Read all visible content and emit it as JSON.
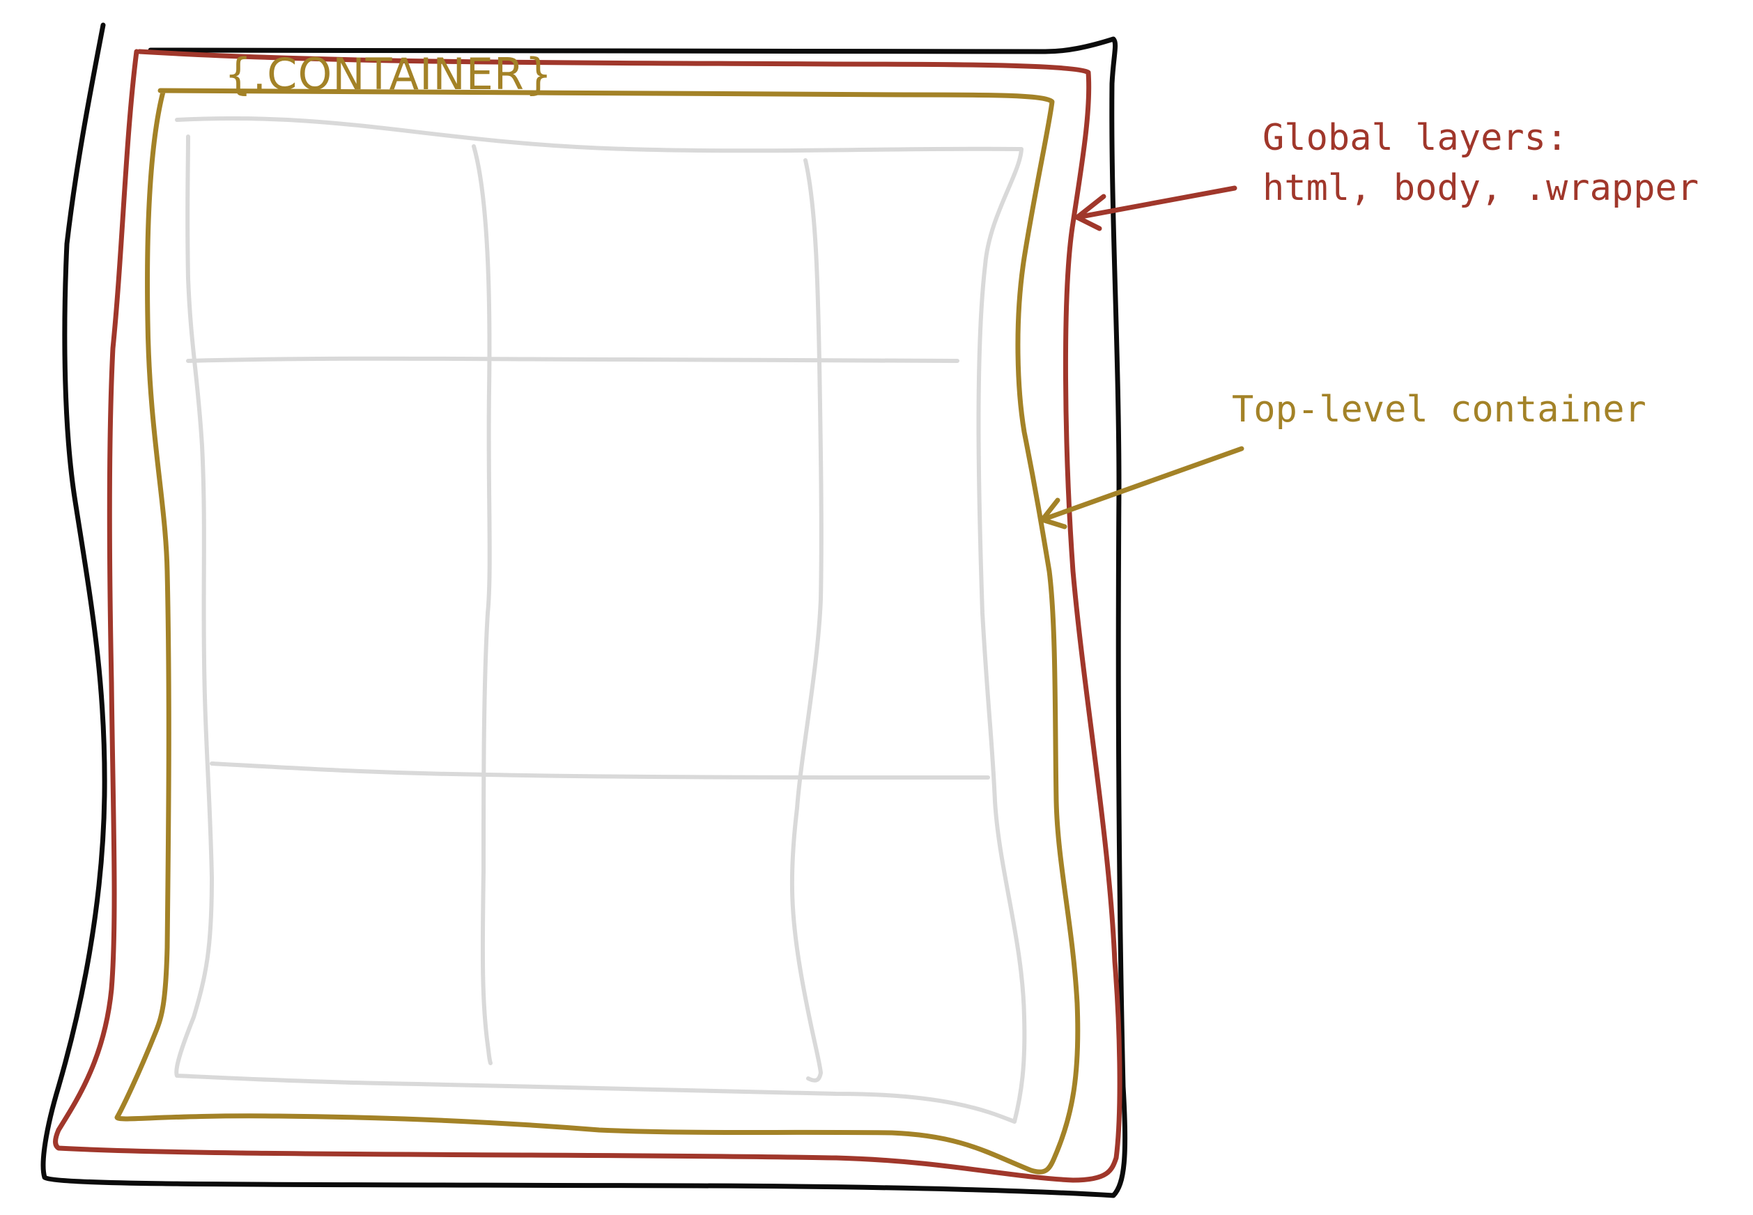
{
  "colors": {
    "outer_frame": "#0b0b0b",
    "global_layers": "#a0372b",
    "top_level_container": "#a38227",
    "grid": "#d9d9d9"
  },
  "diagram": {
    "container_tag": "{.CONTAINER}",
    "grid": {
      "columns": 3,
      "rows": 3
    },
    "callouts": {
      "global_layers": {
        "line1": "Global layers:",
        "line2": "html, body, .wrapper"
      },
      "top_level_container": {
        "line1": "Top-level container"
      }
    }
  }
}
